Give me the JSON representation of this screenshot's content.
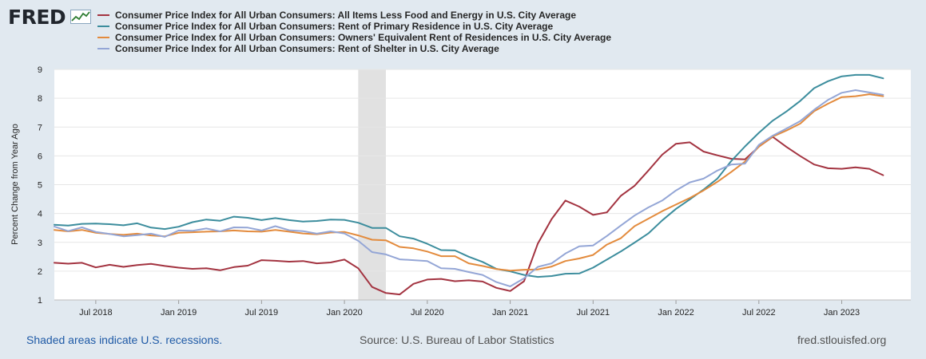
{
  "header": {
    "logo_text": "FRED"
  },
  "footer": {
    "recession_note": "Shaded areas indicate U.S. recessions.",
    "source": "Source: U.S. Bureau of Labor Statistics",
    "site": "fred.stlouisfed.org"
  },
  "colors": {
    "background": "#e1e9f0",
    "plot_background": "#ffffff",
    "recession_shade": "#e1e1e1",
    "gridline": "#e6e6e6"
  },
  "chart_data": {
    "type": "line",
    "title": "",
    "xlabel": "",
    "ylabel": "Percent Change from Year Ago",
    "ylim": [
      1,
      9
    ],
    "yticks": [
      1,
      2,
      3,
      4,
      5,
      6,
      7,
      8,
      9
    ],
    "x_start": "2018-04",
    "x_end": "2023-06",
    "x_tick_labels": [
      {
        "date": "2018-07",
        "label": "Jul 2018"
      },
      {
        "date": "2019-01",
        "label": "Jan 2019"
      },
      {
        "date": "2019-07",
        "label": "Jul 2019"
      },
      {
        "date": "2020-01",
        "label": "Jan 2020"
      },
      {
        "date": "2020-07",
        "label": "Jul 2020"
      },
      {
        "date": "2021-01",
        "label": "Jan 2021"
      },
      {
        "date": "2021-07",
        "label": "Jul 2021"
      },
      {
        "date": "2022-01",
        "label": "Jan 2022"
      },
      {
        "date": "2022-07",
        "label": "Jul 2022"
      },
      {
        "date": "2023-01",
        "label": "Jan 2023"
      }
    ],
    "recessions": [
      {
        "start": "2020-02",
        "end": "2020-04"
      }
    ],
    "series": [
      {
        "name": "Consumer Price Index for All Urban Consumers: All Items Less Food and Energy in U.S. City Average",
        "color": "#a33340",
        "values": [
          2.29,
          2.26,
          2.29,
          2.13,
          2.22,
          2.15,
          2.21,
          2.25,
          2.18,
          2.12,
          2.08,
          2.1,
          2.03,
          2.14,
          2.19,
          2.38,
          2.36,
          2.33,
          2.35,
          2.27,
          2.3,
          2.4,
          2.1,
          1.45,
          1.24,
          1.19,
          1.56,
          1.71,
          1.73,
          1.65,
          1.68,
          1.64,
          1.42,
          1.31,
          1.65,
          2.96,
          3.81,
          4.45,
          4.24,
          3.95,
          4.04,
          4.61,
          4.96,
          5.49,
          6.04,
          6.42,
          6.47,
          6.15,
          6.02,
          5.9,
          5.88,
          6.32,
          6.66,
          6.31,
          5.99,
          5.7,
          5.57,
          5.55,
          5.6,
          5.55,
          5.33
        ]
      },
      {
        "name": "Consumer Price Index for All Urban Consumers: Rent of Primary Residence in U.S. City Average",
        "color": "#3c8d9d",
        "values": [
          3.61,
          3.58,
          3.64,
          3.65,
          3.63,
          3.59,
          3.66,
          3.51,
          3.46,
          3.54,
          3.7,
          3.79,
          3.75,
          3.89,
          3.85,
          3.77,
          3.84,
          3.77,
          3.72,
          3.74,
          3.79,
          3.78,
          3.68,
          3.5,
          3.5,
          3.21,
          3.13,
          2.95,
          2.73,
          2.72,
          2.5,
          2.32,
          2.08,
          1.99,
          1.87,
          1.8,
          1.83,
          1.91,
          1.92,
          2.12,
          2.4,
          2.68,
          2.99,
          3.31,
          3.76,
          4.16,
          4.49,
          4.83,
          5.21,
          5.82,
          6.33,
          6.8,
          7.22,
          7.54,
          7.91,
          8.35,
          8.59,
          8.76,
          8.81,
          8.81,
          8.69
        ]
      },
      {
        "name": "Consumer Price Index for All Urban Consumers: Owners' Equivalent Rent of Residences in U.S. City Average",
        "color": "#e38b3d",
        "values": [
          3.43,
          3.38,
          3.43,
          3.33,
          3.29,
          3.26,
          3.3,
          3.24,
          3.21,
          3.33,
          3.35,
          3.37,
          3.38,
          3.41,
          3.38,
          3.37,
          3.43,
          3.37,
          3.31,
          3.28,
          3.34,
          3.36,
          3.24,
          3.09,
          3.07,
          2.84,
          2.79,
          2.68,
          2.52,
          2.52,
          2.27,
          2.18,
          2.07,
          2.02,
          2.05,
          2.06,
          2.16,
          2.35,
          2.44,
          2.56,
          2.92,
          3.14,
          3.56,
          3.82,
          4.08,
          4.31,
          4.54,
          4.8,
          5.1,
          5.44,
          5.8,
          6.32,
          6.67,
          6.88,
          7.12,
          7.55,
          7.81,
          8.04,
          8.07,
          8.14,
          8.07
        ]
      },
      {
        "name": "Consumer Price Index for All Urban Consumers: Rent of Shelter in U.S. City Average",
        "color": "#94a6d6",
        "values": [
          3.55,
          3.39,
          3.52,
          3.36,
          3.29,
          3.21,
          3.25,
          3.3,
          3.19,
          3.41,
          3.4,
          3.48,
          3.38,
          3.52,
          3.51,
          3.41,
          3.56,
          3.42,
          3.39,
          3.3,
          3.38,
          3.31,
          3.05,
          2.66,
          2.58,
          2.41,
          2.38,
          2.35,
          2.1,
          2.08,
          1.97,
          1.87,
          1.62,
          1.47,
          1.75,
          2.15,
          2.27,
          2.61,
          2.86,
          2.89,
          3.22,
          3.58,
          3.93,
          4.21,
          4.45,
          4.8,
          5.08,
          5.21,
          5.49,
          5.7,
          5.73,
          6.38,
          6.7,
          6.95,
          7.21,
          7.6,
          7.94,
          8.19,
          8.28,
          8.2,
          8.12
        ]
      }
    ]
  }
}
